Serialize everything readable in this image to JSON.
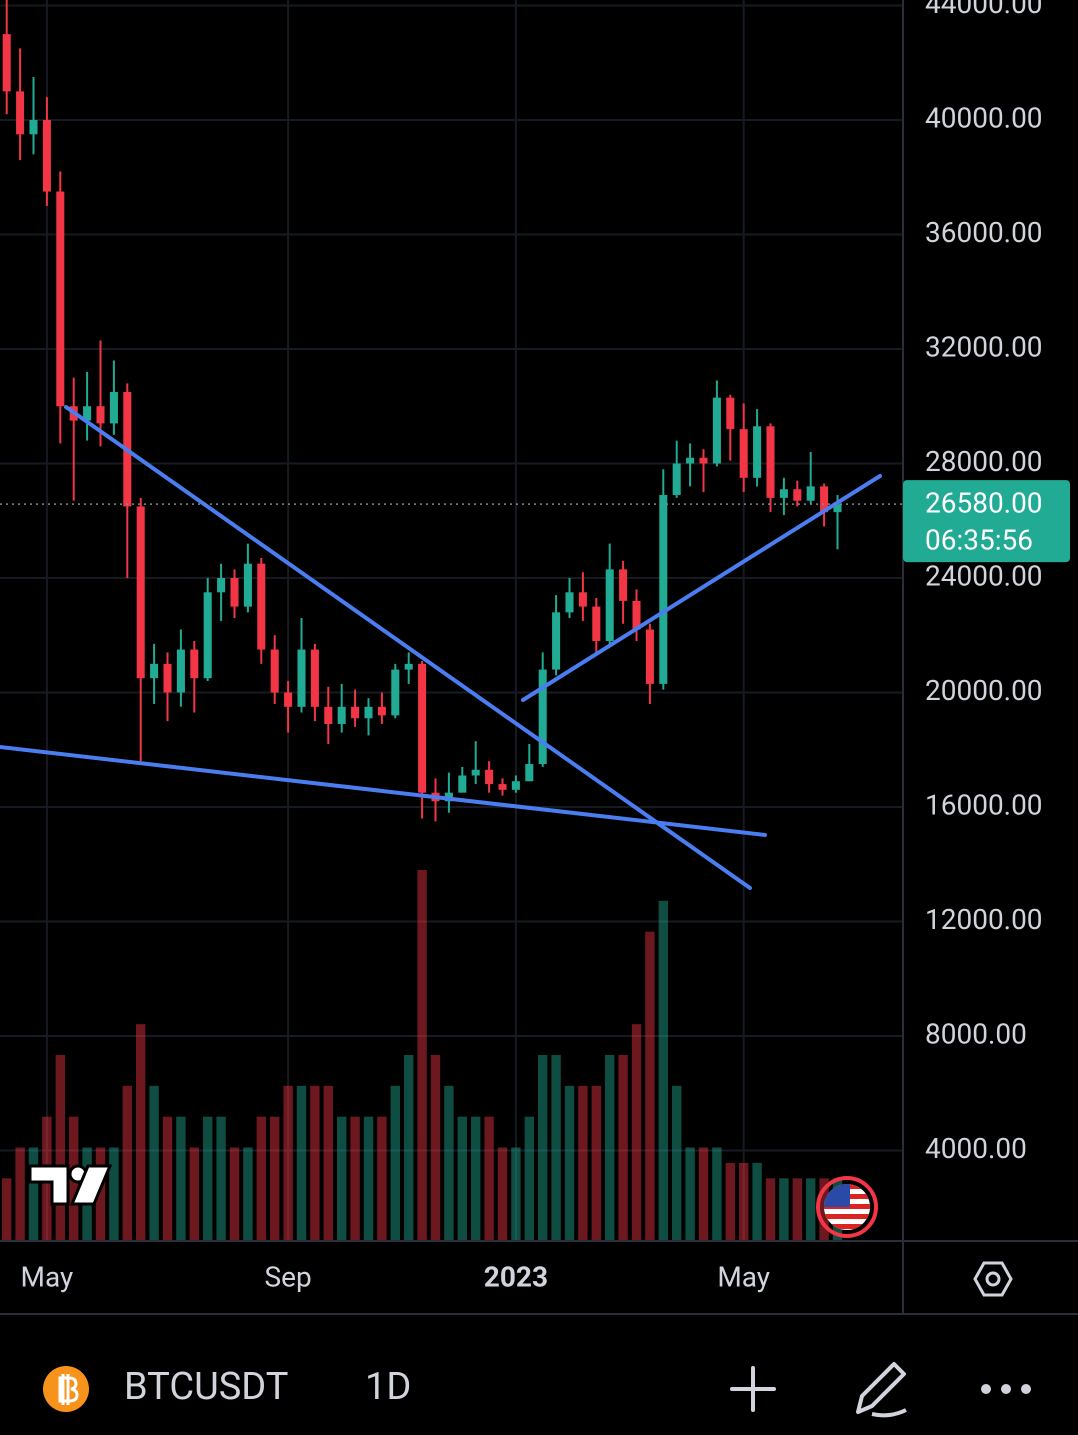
{
  "chart_data": {
    "type": "candlestick",
    "symbol": "BTCUSDT",
    "interval": "1D",
    "up_color": "#22ab94",
    "down_color": "#f23645",
    "grid": true,
    "categories": [
      null,
      null,
      null,
      "May",
      null,
      null,
      null,
      null,
      null,
      null,
      null,
      null,
      null,
      null,
      null,
      null,
      null,
      null,
      null,
      null,
      null,
      "Sep",
      null,
      null,
      null,
      null,
      null,
      null,
      null,
      null,
      null,
      null,
      null,
      null,
      null,
      null,
      null,
      null,
      "2023",
      null,
      null,
      null,
      null,
      null,
      null,
      null,
      null,
      null,
      null,
      null,
      null,
      null,
      null,
      null,
      null,
      "May",
      null,
      null,
      null,
      null,
      null,
      null,
      null
    ],
    "open": [
      43000,
      41000,
      39500,
      40000,
      37500,
      30000,
      29500,
      30000,
      29400,
      30500,
      26500,
      20500,
      21000,
      20000,
      21500,
      20500,
      23500,
      24000,
      23000,
      24500,
      21500,
      20000,
      19500,
      21500,
      19500,
      18900,
      19500,
      19100,
      19500,
      19200,
      20800,
      21000,
      16500,
      16200,
      16500,
      17100,
      17300,
      16800,
      16600,
      16900,
      17500,
      20800,
      22800,
      23500,
      23000,
      21800,
      24300,
      23200,
      22200,
      20300,
      26900,
      28000,
      28200,
      28000,
      30300,
      29200,
      27500,
      29300,
      26800,
      27100,
      26700,
      27200,
      26300
    ],
    "high": [
      44200,
      42500,
      41500,
      40800,
      38200,
      31000,
      31200,
      32300,
      31600,
      30800,
      26800,
      21700,
      21400,
      22200,
      21800,
      24000,
      24500,
      24300,
      25200,
      24700,
      22000,
      20400,
      22600,
      21700,
      20200,
      20300,
      20100,
      19800,
      20000,
      21000,
      21400,
      21100,
      17000,
      17200,
      17400,
      18300,
      17600,
      17000,
      17100,
      18200,
      21400,
      23400,
      24000,
      24200,
      23300,
      25200,
      24600,
      23600,
      22400,
      27800,
      28800,
      28700,
      28500,
      30900,
      30400,
      30100,
      29900,
      29400,
      27500,
      27400,
      28400,
      27300,
      26900
    ],
    "low": [
      40200,
      38600,
      38800,
      37000,
      28700,
      26700,
      28800,
      28600,
      29000,
      24000,
      17600,
      19600,
      19000,
      19500,
      19300,
      20400,
      22500,
      22600,
      22800,
      21000,
      19600,
      18600,
      19300,
      19000,
      18200,
      18600,
      18800,
      18500,
      18900,
      19100,
      20300,
      15600,
      15500,
      15800,
      16600,
      16800,
      16500,
      16400,
      16500,
      16900,
      17400,
      20600,
      22600,
      22500,
      21400,
      21700,
      22400,
      21800,
      19600,
      20100,
      26800,
      27200,
      27000,
      27900,
      28100,
      27000,
      27200,
      26300,
      26200,
      26500,
      26600,
      25800,
      25000
    ],
    "close": [
      41000,
      39500,
      40000,
      37500,
      30000,
      29500,
      30000,
      29400,
      30500,
      26500,
      20500,
      21000,
      20000,
      21500,
      20500,
      23500,
      24000,
      23000,
      24500,
      21500,
      20000,
      19500,
      21500,
      19500,
      18900,
      19500,
      19100,
      19500,
      19200,
      20800,
      21000,
      16500,
      16200,
      16500,
      17100,
      17300,
      16800,
      16600,
      16900,
      17500,
      20800,
      22800,
      23500,
      23000,
      21800,
      24300,
      23200,
      22200,
      20300,
      26900,
      28000,
      28200,
      28000,
      30300,
      29200,
      27500,
      29300,
      26800,
      27100,
      26700,
      27200,
      26300,
      26580
    ],
    "volume": [
      2,
      3,
      3,
      4,
      6,
      4,
      3,
      3,
      3,
      5,
      7,
      5,
      4,
      4,
      3,
      4,
      4,
      3,
      3,
      4,
      4,
      5,
      5,
      5,
      5,
      4,
      4,
      4,
      4,
      5,
      6,
      12,
      6,
      5,
      4,
      4,
      4,
      3,
      3,
      4,
      6,
      6,
      5,
      5,
      5,
      6,
      6,
      7,
      10,
      11,
      5,
      3,
      3,
      3,
      2.5,
      2.5,
      2.5,
      2,
      2,
      2,
      2,
      2,
      2
    ],
    "ylim": [
      873,
      44192
    ],
    "yticks": [
      {
        "value": 4000,
        "label": "4000.00"
      },
      {
        "value": 8000,
        "label": "8000.00"
      },
      {
        "value": 12000,
        "label": "12000.00"
      },
      {
        "value": 16000,
        "label": "16000.00"
      },
      {
        "value": 20000,
        "label": "20000.00"
      },
      {
        "value": 24000,
        "label": "24000.00"
      },
      {
        "value": 28000,
        "label": "28000.00"
      },
      {
        "value": 32000,
        "label": "32000.00"
      },
      {
        "value": 36000,
        "label": "36000.00"
      },
      {
        "value": 40000,
        "label": "40000.00"
      },
      {
        "value": 44000,
        "label": "44000.00"
      }
    ],
    "last_price": {
      "value": 26580,
      "label": "26580.00"
    },
    "countdown": "06:35:56"
  }
}
